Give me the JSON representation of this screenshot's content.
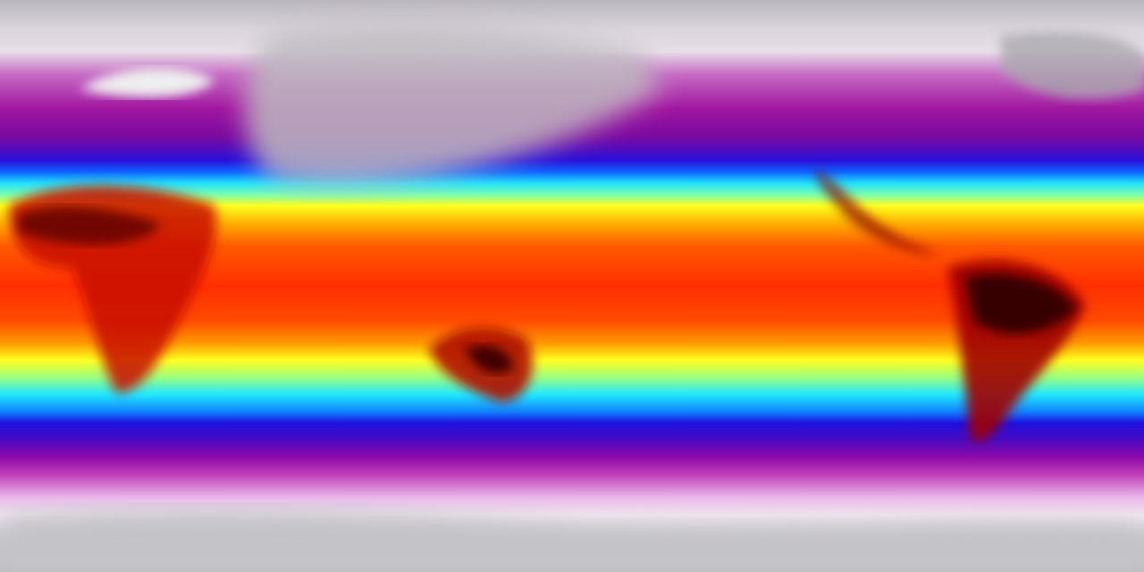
{
  "map": {
    "colors": {
      "polar": "#c8c8cc",
      "cold": "#a0179f",
      "cool": "#2010e0",
      "mild": "#20e0ff",
      "warm": "#ffff20",
      "hot": "#ff3000",
      "hottest": "#3a0000"
    }
  }
}
